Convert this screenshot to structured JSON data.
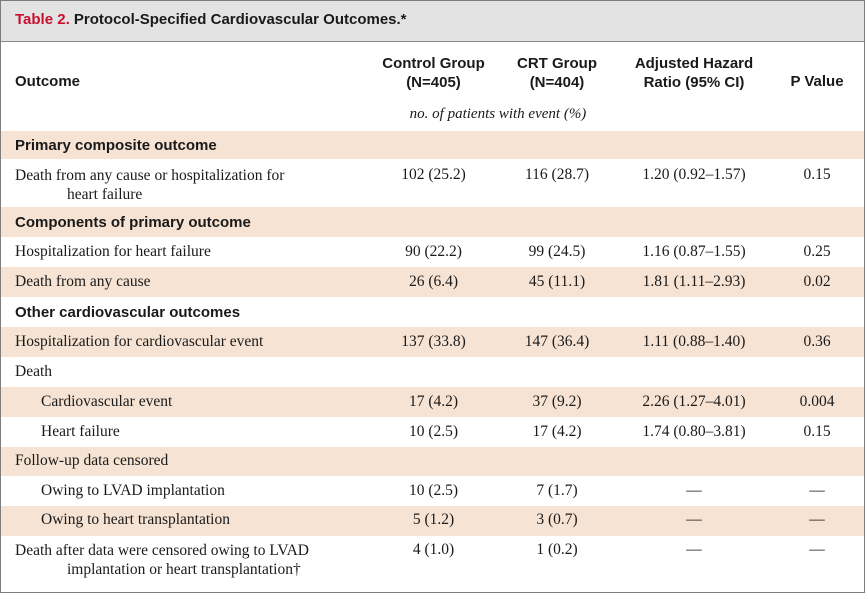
{
  "table": {
    "title_label": "Table 2.",
    "title_text": "Protocol-Specified Cardiovascular Outcomes.*",
    "headers": {
      "outcome": "Outcome",
      "control_line1": "Control Group",
      "control_line2": "(N=405)",
      "crt_line1": "CRT Group",
      "crt_line2": "(N=404)",
      "hr_line1": "Adjusted Hazard",
      "hr_line2": "Ratio (95% CI)",
      "p": "P Value"
    },
    "units": "no. of patients with event (%)",
    "sections": {
      "primary": "Primary composite outcome",
      "components": "Components of primary outcome",
      "other": "Other cardiovascular outcomes"
    },
    "rows": [
      {
        "label": "Death from any cause or hospitalization for",
        "label2": "heart failure",
        "control": "102 (25.2)",
        "crt": "116 (28.7)",
        "hr": "1.20 (0.92–1.57)",
        "p": "0.15"
      },
      {
        "label": "Hospitalization for heart failure",
        "control": "90 (22.2)",
        "crt": "99 (24.5)",
        "hr": "1.16 (0.87–1.55)",
        "p": "0.25"
      },
      {
        "label": "Death from any cause",
        "control": "26 (6.4)",
        "crt": "45 (11.1)",
        "hr": "1.81 (1.11–2.93)",
        "p": "0.02"
      },
      {
        "label": "Hospitalization for cardiovascular event",
        "control": "137 (33.8)",
        "crt": "147 (36.4)",
        "hr": "1.11 (0.88–1.40)",
        "p": "0.36"
      },
      {
        "label": "Death"
      },
      {
        "label": "Cardiovascular event",
        "control": "17 (4.2)",
        "crt": "37 (9.2)",
        "hr": "2.26 (1.27–4.01)",
        "p": "0.004"
      },
      {
        "label": "Heart failure",
        "control": "10 (2.5)",
        "crt": "17 (4.2)",
        "hr": "1.74 (0.80–3.81)",
        "p": "0.15"
      },
      {
        "label": "Follow-up data censored"
      },
      {
        "label": "Owing to LVAD implantation",
        "control": "10 (2.5)",
        "crt": "7 (1.7)",
        "hr": "—",
        "p": "—"
      },
      {
        "label": "Owing to heart transplantation",
        "control": "5 (1.2)",
        "crt": "3 (0.7)",
        "hr": "—",
        "p": "—"
      },
      {
        "label": "Death after data were censored owing to LVAD",
        "label2": "implantation or heart transplantation†",
        "control": "4 (1.0)",
        "crt": "1 (0.2)",
        "hr": "—",
        "p": "—"
      }
    ]
  }
}
